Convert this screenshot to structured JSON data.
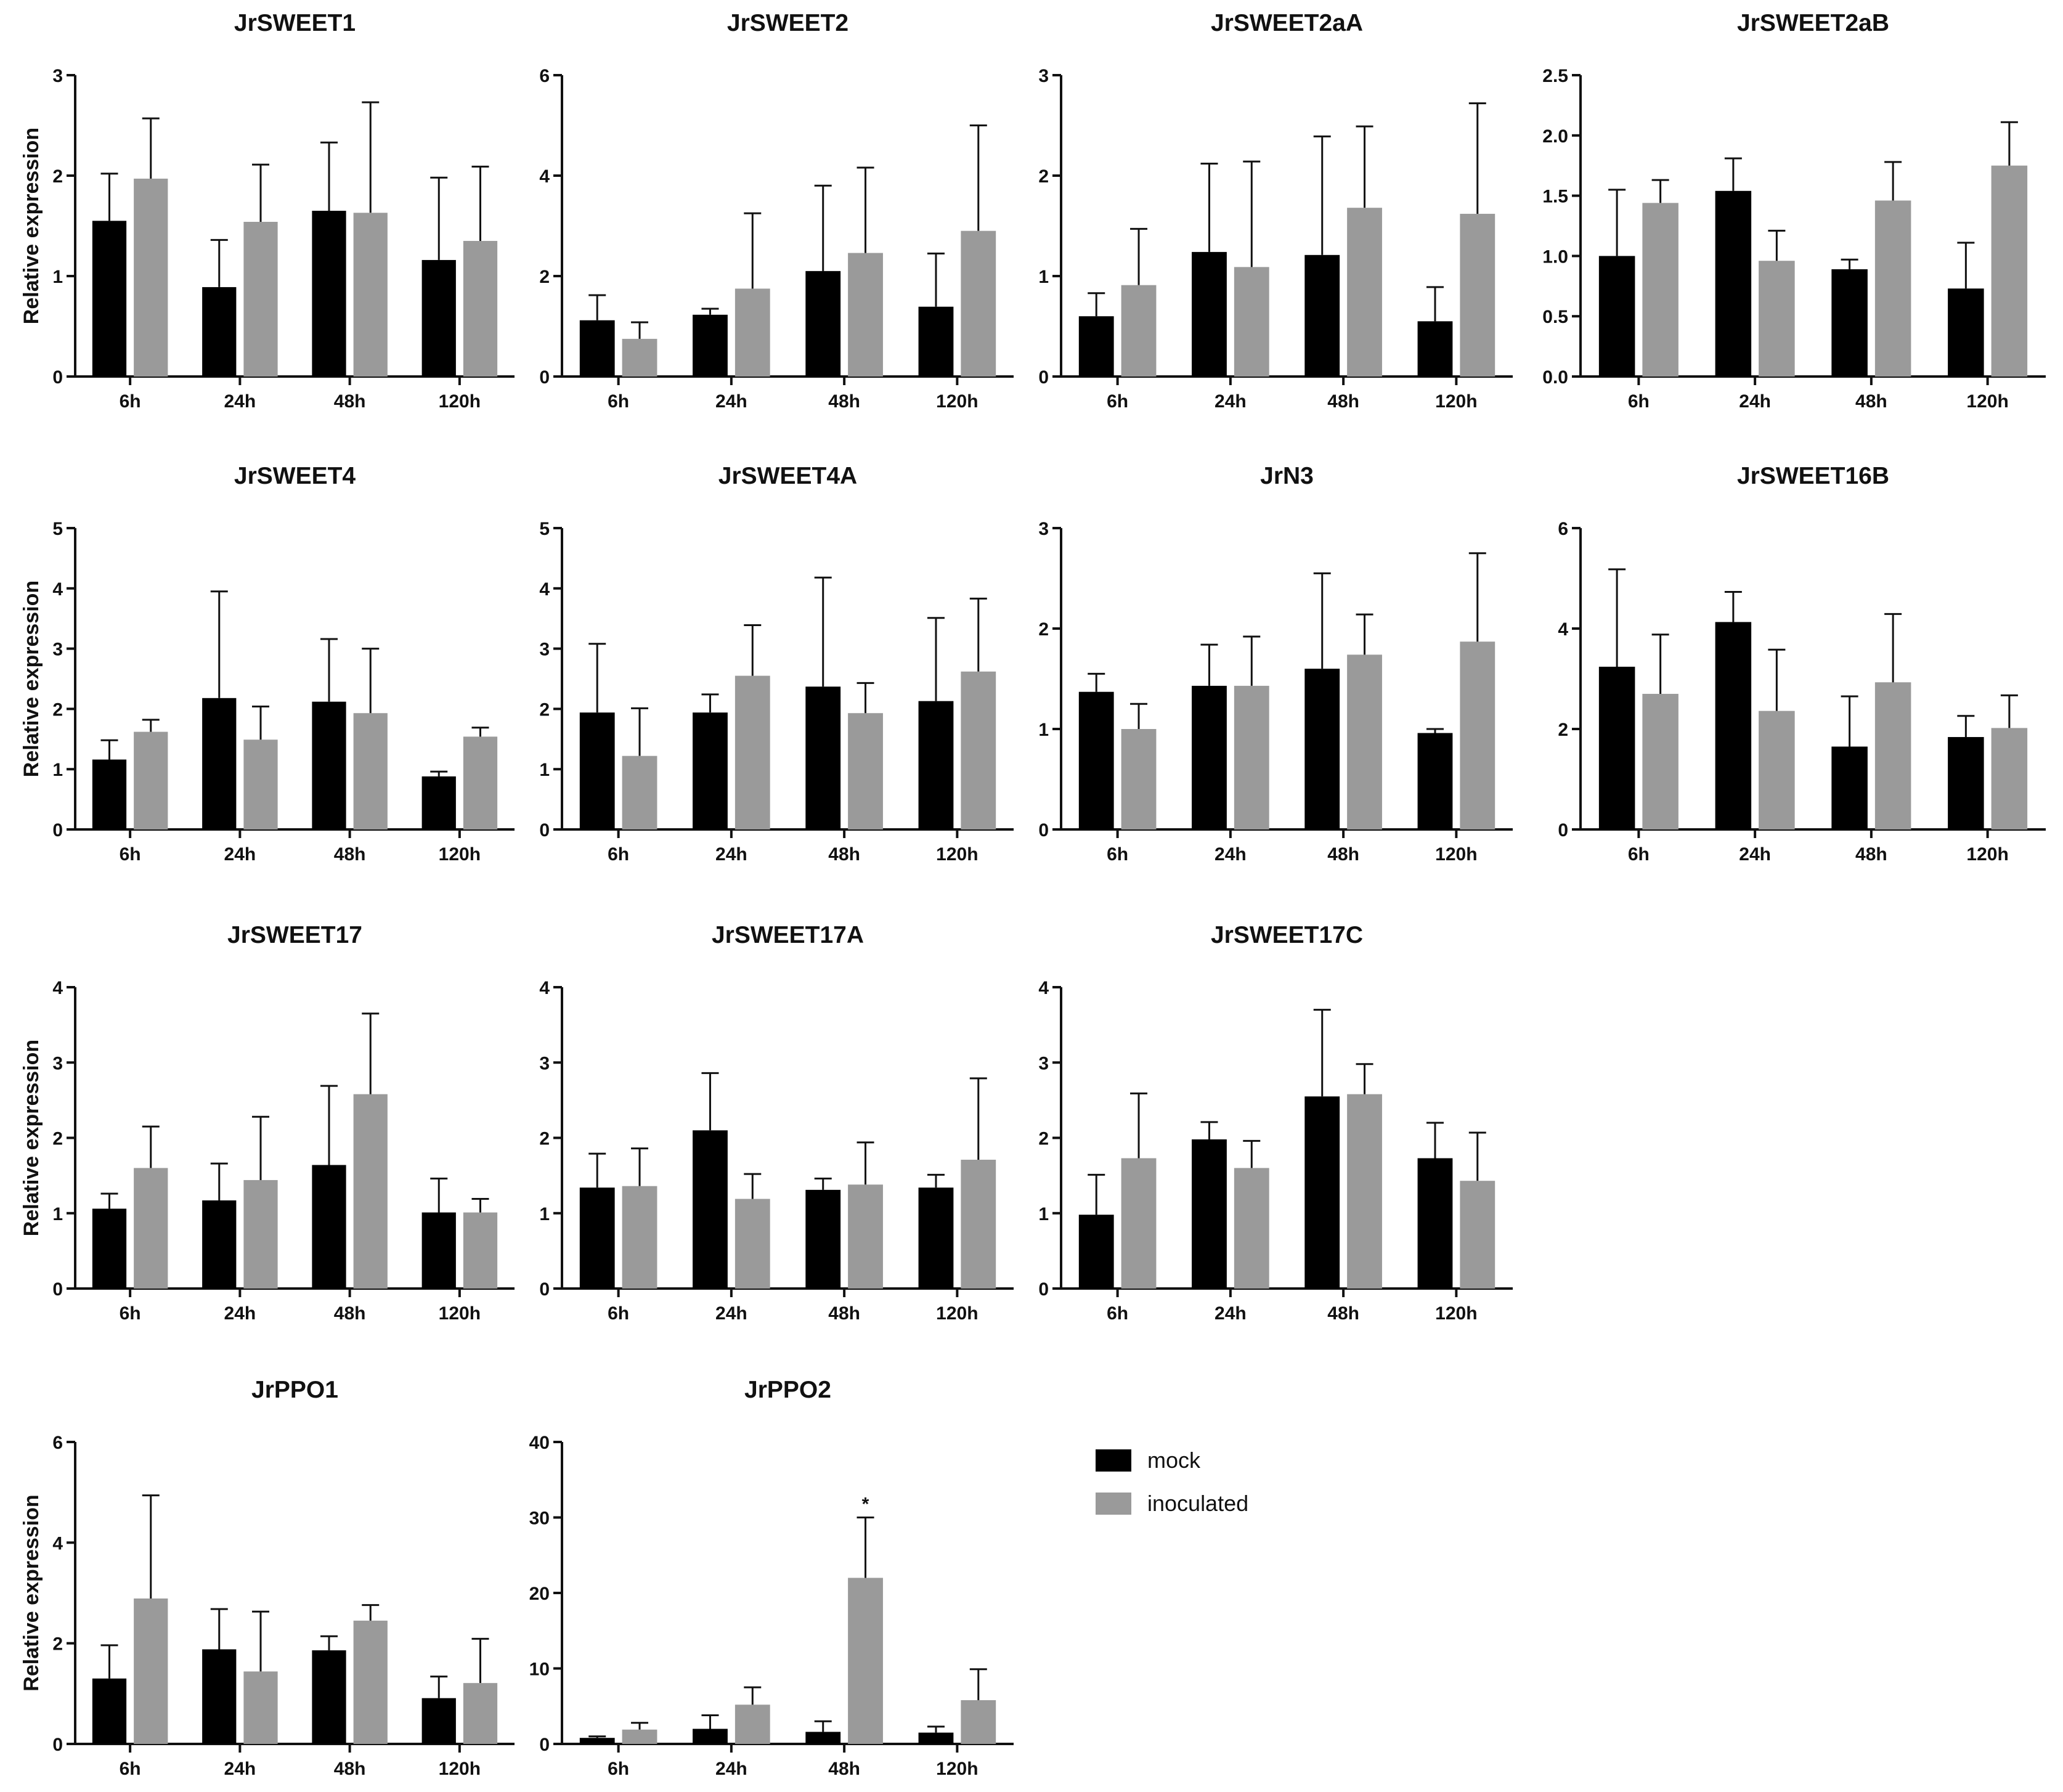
{
  "chart_data": [
    {
      "type": "bar",
      "title": "JrSWEET1",
      "ylabel": "Relative expression",
      "ylim": [
        0,
        3
      ],
      "yticks": [
        "0",
        "1",
        "2",
        "3"
      ],
      "categories": [
        "6h",
        "24h",
        "48h",
        "120h"
      ],
      "series": [
        {
          "name": "mock",
          "values": [
            1.55,
            0.89,
            1.65,
            1.16
          ],
          "errors": [
            0.47,
            0.47,
            0.68,
            0.82
          ]
        },
        {
          "name": "inoculated",
          "values": [
            1.97,
            1.54,
            1.63,
            1.35
          ],
          "errors": [
            0.6,
            0.57,
            1.1,
            0.74
          ]
        }
      ]
    },
    {
      "type": "bar",
      "title": "JrSWEET2",
      "ylabel": "",
      "ylim": [
        0,
        6
      ],
      "yticks": [
        "0",
        "2",
        "4",
        "6"
      ],
      "categories": [
        "6h",
        "24h",
        "48h",
        "120h"
      ],
      "series": [
        {
          "name": "mock",
          "values": [
            1.12,
            1.23,
            2.1,
            1.39
          ],
          "errors": [
            0.5,
            0.12,
            1.7,
            1.06
          ]
        },
        {
          "name": "inoculated",
          "values": [
            0.75,
            1.75,
            2.46,
            2.9
          ],
          "errors": [
            0.33,
            1.5,
            1.7,
            2.1
          ]
        }
      ]
    },
    {
      "type": "bar",
      "title": "JrSWEET2aA",
      "ylabel": "",
      "ylim": [
        0,
        3
      ],
      "yticks": [
        "0",
        "1",
        "2",
        "3"
      ],
      "categories": [
        "6h",
        "24h",
        "48h",
        "120h"
      ],
      "series": [
        {
          "name": "mock",
          "values": [
            0.6,
            1.24,
            1.21,
            0.55
          ],
          "errors": [
            0.23,
            0.88,
            1.18,
            0.34
          ]
        },
        {
          "name": "inoculated",
          "values": [
            0.91,
            1.09,
            1.68,
            1.62
          ],
          "errors": [
            0.56,
            1.05,
            0.81,
            1.1
          ]
        }
      ]
    },
    {
      "type": "bar",
      "title": "JrSWEET2aB",
      "ylabel": "",
      "ylim": [
        0,
        2.5
      ],
      "yticks": [
        "0.0",
        "0.5",
        "1.0",
        "1.5",
        "2.0",
        "2.5"
      ],
      "categories": [
        "6h",
        "24h",
        "48h",
        "120h"
      ],
      "series": [
        {
          "name": "mock",
          "values": [
            1.0,
            1.54,
            0.89,
            0.73
          ],
          "errors": [
            0.55,
            0.27,
            0.08,
            0.38
          ]
        },
        {
          "name": "inoculated",
          "values": [
            1.44,
            0.96,
            1.46,
            1.75
          ],
          "errors": [
            0.19,
            0.25,
            0.32,
            0.36
          ]
        }
      ]
    },
    {
      "type": "bar",
      "title": "JrSWEET4",
      "ylabel": "Relative expression",
      "ylim": [
        0,
        5
      ],
      "yticks": [
        "0",
        "1",
        "2",
        "3",
        "4",
        "5"
      ],
      "categories": [
        "6h",
        "24h",
        "48h",
        "120h"
      ],
      "series": [
        {
          "name": "mock",
          "values": [
            1.16,
            2.18,
            2.12,
            0.88
          ],
          "errors": [
            0.32,
            1.77,
            1.04,
            0.08
          ]
        },
        {
          "name": "inoculated",
          "values": [
            1.62,
            1.49,
            1.93,
            1.54
          ],
          "errors": [
            0.2,
            0.55,
            1.07,
            0.15
          ]
        }
      ]
    },
    {
      "type": "bar",
      "title": "JrSWEET4A",
      "ylabel": "",
      "ylim": [
        0,
        5
      ],
      "yticks": [
        "0",
        "1",
        "2",
        "3",
        "4",
        "5"
      ],
      "categories": [
        "6h",
        "24h",
        "48h",
        "120h"
      ],
      "series": [
        {
          "name": "mock",
          "values": [
            1.94,
            1.94,
            2.37,
            2.13
          ],
          "errors": [
            1.14,
            0.3,
            1.81,
            1.38
          ]
        },
        {
          "name": "inoculated",
          "values": [
            1.22,
            2.55,
            1.93,
            2.62
          ],
          "errors": [
            0.79,
            0.84,
            0.5,
            1.21
          ]
        }
      ]
    },
    {
      "type": "bar",
      "title": "JrN3",
      "ylabel": "",
      "ylim": [
        0,
        3
      ],
      "yticks": [
        "0",
        "1",
        "2",
        "3"
      ],
      "categories": [
        "6h",
        "24h",
        "48h",
        "120h"
      ],
      "series": [
        {
          "name": "mock",
          "values": [
            1.37,
            1.43,
            1.6,
            0.96
          ],
          "errors": [
            0.18,
            0.41,
            0.95,
            0.04
          ]
        },
        {
          "name": "inoculated",
          "values": [
            1.0,
            1.43,
            1.74,
            1.87
          ],
          "errors": [
            0.25,
            0.49,
            0.4,
            0.88
          ]
        }
      ]
    },
    {
      "type": "bar",
      "title": "JrSWEET16B",
      "ylabel": "",
      "ylim": [
        0,
        6
      ],
      "yticks": [
        "0",
        "2",
        "4",
        "6"
      ],
      "categories": [
        "6h",
        "24h",
        "48h",
        "120h"
      ],
      "series": [
        {
          "name": "mock",
          "values": [
            3.24,
            4.13,
            1.65,
            1.84
          ],
          "errors": [
            1.94,
            0.6,
            1.0,
            0.42
          ]
        },
        {
          "name": "inoculated",
          "values": [
            2.7,
            2.36,
            2.93,
            2.02
          ],
          "errors": [
            1.18,
            1.22,
            1.36,
            0.65
          ]
        }
      ]
    },
    {
      "type": "bar",
      "title": "JrSWEET17",
      "ylabel": "Relative expression",
      "ylim": [
        0,
        4
      ],
      "yticks": [
        "0",
        "1",
        "2",
        "3",
        "4"
      ],
      "categories": [
        "6h",
        "24h",
        "48h",
        "120h"
      ],
      "series": [
        {
          "name": "mock",
          "values": [
            1.06,
            1.17,
            1.64,
            1.01
          ],
          "errors": [
            0.2,
            0.49,
            1.05,
            0.45
          ]
        },
        {
          "name": "inoculated",
          "values": [
            1.6,
            1.44,
            2.58,
            1.01
          ],
          "errors": [
            0.55,
            0.84,
            1.07,
            0.18
          ]
        }
      ]
    },
    {
      "type": "bar",
      "title": "JrSWEET17A",
      "ylabel": "",
      "ylim": [
        0,
        4
      ],
      "yticks": [
        "0",
        "1",
        "2",
        "3",
        "4"
      ],
      "categories": [
        "6h",
        "24h",
        "48h",
        "120h"
      ],
      "series": [
        {
          "name": "mock",
          "values": [
            1.34,
            2.1,
            1.31,
            1.34
          ],
          "errors": [
            0.45,
            0.76,
            0.15,
            0.17
          ]
        },
        {
          "name": "inoculated",
          "values": [
            1.36,
            1.19,
            1.38,
            1.71
          ],
          "errors": [
            0.5,
            0.33,
            0.56,
            1.08
          ]
        }
      ]
    },
    {
      "type": "bar",
      "title": "JrSWEET17C",
      "ylabel": "",
      "ylim": [
        0,
        4
      ],
      "yticks": [
        "0",
        "1",
        "2",
        "3",
        "4"
      ],
      "categories": [
        "6h",
        "24h",
        "48h",
        "120h"
      ],
      "series": [
        {
          "name": "mock",
          "values": [
            0.98,
            1.98,
            2.55,
            1.73
          ],
          "errors": [
            0.53,
            0.23,
            1.15,
            0.47
          ]
        },
        {
          "name": "inoculated",
          "values": [
            1.73,
            1.6,
            2.58,
            1.43
          ],
          "errors": [
            0.86,
            0.36,
            0.4,
            0.64
          ]
        }
      ]
    },
    {
      "type": "bar",
      "title": "JrPPO1",
      "ylabel": "Relative expression",
      "ylim": [
        0,
        6
      ],
      "yticks": [
        "0",
        "2",
        "4",
        "6"
      ],
      "categories": [
        "6h",
        "24h",
        "48h",
        "120h"
      ],
      "series": [
        {
          "name": "mock",
          "values": [
            1.3,
            1.88,
            1.86,
            0.91
          ],
          "errors": [
            0.66,
            0.8,
            0.28,
            0.43
          ]
        },
        {
          "name": "inoculated",
          "values": [
            2.89,
            1.44,
            2.45,
            1.21
          ],
          "errors": [
            2.05,
            1.19,
            0.31,
            0.88
          ]
        }
      ]
    },
    {
      "type": "bar",
      "title": "JrPPO2",
      "ylabel": "",
      "ylim": [
        0,
        40
      ],
      "yticks": [
        "0",
        "10",
        "20",
        "30",
        "40"
      ],
      "categories": [
        "6h",
        "24h",
        "48h",
        "120h"
      ],
      "annotation": {
        "text": "*",
        "category": "48h",
        "series": "inoculated"
      },
      "series": [
        {
          "name": "mock",
          "values": [
            0.8,
            2.0,
            1.6,
            1.5
          ],
          "errors": [
            0.2,
            1.8,
            1.4,
            0.8
          ]
        },
        {
          "name": "inoculated",
          "values": [
            1.9,
            5.2,
            22.0,
            5.8
          ],
          "errors": [
            0.9,
            2.3,
            8.0,
            4.1
          ]
        }
      ]
    }
  ],
  "legend": [
    {
      "label": "mock",
      "color": "#000000"
    },
    {
      "label": "inoculated",
      "color": "#9a9a9a"
    }
  ]
}
